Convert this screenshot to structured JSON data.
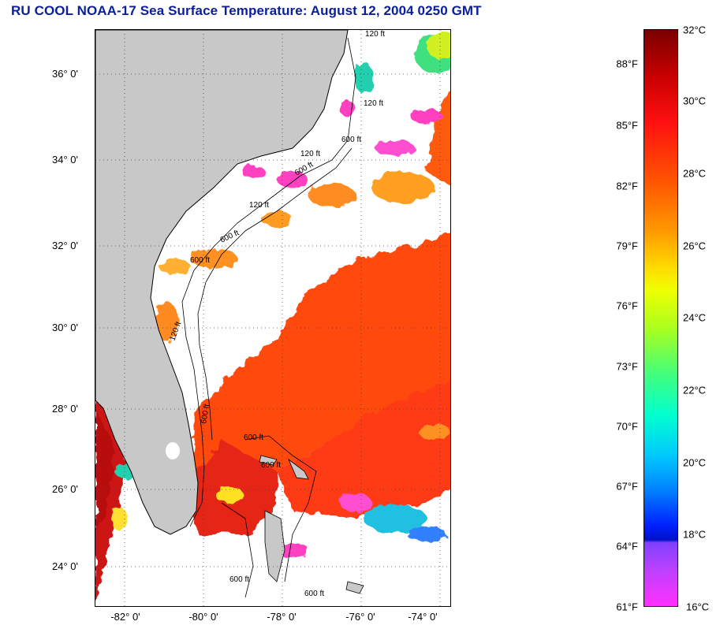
{
  "title": "RU COOL  NOAA-17  Sea Surface Temperature:  August 12, 2004 0250 GMT",
  "map": {
    "latitude_labels": [
      "36° 0'",
      "34° 0'",
      "32° 0'",
      "30° 0'",
      "28° 0'",
      "26° 0'",
      "24° 0'"
    ],
    "longitude_labels": [
      "-82° 0'",
      "-80° 0'",
      "-78° 0'",
      "-76° 0'",
      "-74° 0'"
    ],
    "contour_labels": [
      "120 ft",
      "120 ft",
      "600 ft",
      "120 ft",
      "600 ft",
      "120 ft",
      "600 ft",
      "600 ft",
      "120 ft",
      "600 ft",
      "600 ft",
      "600 ft",
      "600 ft",
      "600 ft"
    ],
    "colors": {
      "land": "#c8c8c8",
      "cloud": "#ffffff",
      "warm": "#ff3c00",
      "hot": "#cc1010"
    }
  },
  "colorbar": {
    "fahrenheit_labels": [
      "88°F",
      "85°F",
      "82°F",
      "79°F",
      "76°F",
      "73°F",
      "70°F",
      "67°F",
      "64°F",
      "61°F"
    ],
    "celsius_labels": [
      "32°C",
      "30°C",
      "28°C",
      "26°C",
      "24°C",
      "22°C",
      "20°C",
      "18°C",
      "16°C"
    ]
  }
}
